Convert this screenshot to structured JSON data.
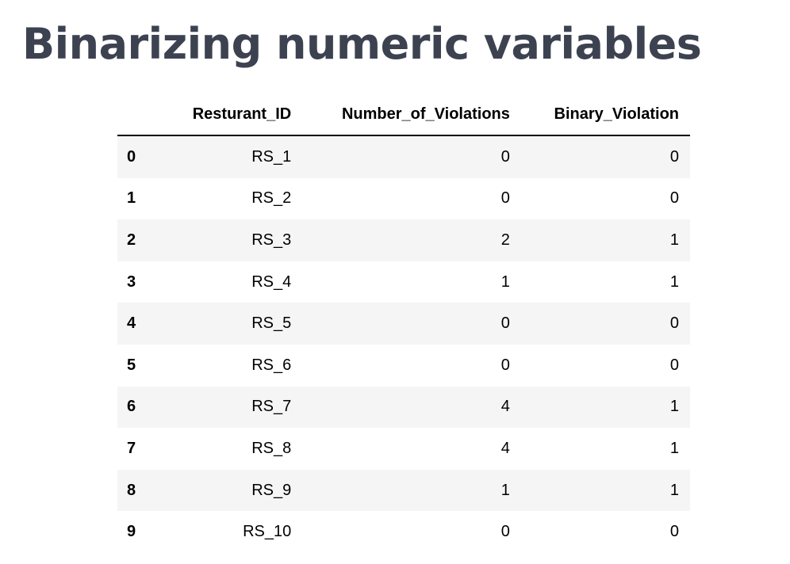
{
  "page": {
    "title": "Binarizing numeric variables"
  },
  "table": {
    "columns": [
      "",
      "Resturant_ID",
      "Number_of_Violations",
      "Binary_Violation"
    ],
    "rows": [
      {
        "index": "0",
        "restaurant_id": "RS_1",
        "violations": "0",
        "binary": "0"
      },
      {
        "index": "1",
        "restaurant_id": "RS_2",
        "violations": "0",
        "binary": "0"
      },
      {
        "index": "2",
        "restaurant_id": "RS_3",
        "violations": "2",
        "binary": "1"
      },
      {
        "index": "3",
        "restaurant_id": "RS_4",
        "violations": "1",
        "binary": "1"
      },
      {
        "index": "4",
        "restaurant_id": "RS_5",
        "violations": "0",
        "binary": "0"
      },
      {
        "index": "5",
        "restaurant_id": "RS_6",
        "violations": "0",
        "binary": "0"
      },
      {
        "index": "6",
        "restaurant_id": "RS_7",
        "violations": "4",
        "binary": "1"
      },
      {
        "index": "7",
        "restaurant_id": "RS_8",
        "violations": "4",
        "binary": "1"
      },
      {
        "index": "8",
        "restaurant_id": "RS_9",
        "violations": "1",
        "binary": "1"
      },
      {
        "index": "9",
        "restaurant_id": "RS_10",
        "violations": "0",
        "binary": "0"
      }
    ]
  }
}
